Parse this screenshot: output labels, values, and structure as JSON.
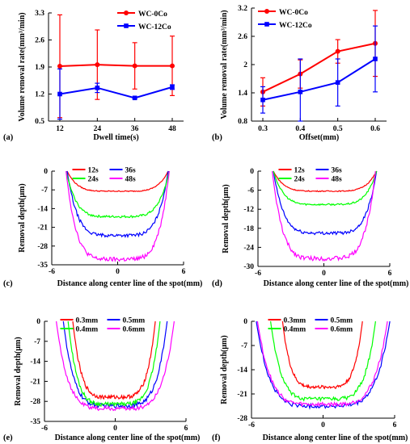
{
  "chart_data": [
    {
      "id": "a",
      "panel_label": "(a)",
      "type": "line",
      "xlabel": "Dwell time(s)",
      "ylabel": "Volume removal rate(mm³/min)",
      "xcats": [
        "12",
        "24",
        "36",
        "48"
      ],
      "yticks": [
        "0.5",
        "1.2",
        "1.9",
        "2.6",
        "3.3"
      ],
      "ylim": [
        0.5,
        3.3
      ],
      "legend_position": "top-right",
      "series": [
        {
          "name": "WC-0Co",
          "color": "#ff0000",
          "marker": "circle",
          "values": [
            1.92,
            1.96,
            1.93,
            1.93
          ],
          "err": [
            1.33,
            0.9,
            0.6,
            0.77
          ]
        },
        {
          "name": "WC-12Co",
          "color": "#0000ff",
          "marker": "square",
          "values": [
            1.2,
            1.36,
            1.1,
            1.38
          ],
          "err": [
            0.65,
            0.12,
            0.02,
            0.06
          ]
        }
      ]
    },
    {
      "id": "b",
      "panel_label": "(b)",
      "type": "line",
      "xlabel": "Offset(mm)",
      "ylabel": "Volume removal rate(mm³/min)",
      "xcats": [
        "0.3",
        "0.4",
        "0.5",
        "0.6"
      ],
      "yticks": [
        "0.8",
        "1.4",
        "2",
        "2.6",
        "3.2"
      ],
      "ylim": [
        0.8,
        3.2
      ],
      "legend_position": "top-left",
      "series": [
        {
          "name": "WC-0Co",
          "color": "#ff0000",
          "marker": "circle",
          "values": [
            1.42,
            1.8,
            2.28,
            2.45
          ],
          "err": [
            0.3,
            0.3,
            0.25,
            0.7
          ]
        },
        {
          "name": "WC-12Co",
          "color": "#0000ff",
          "marker": "square",
          "values": [
            1.25,
            1.42,
            1.62,
            2.12
          ],
          "err": [
            0.28,
            0.7,
            0.5,
            0.7
          ]
        }
      ]
    },
    {
      "id": "c",
      "panel_label": "(c)",
      "type": "line",
      "xlabel": "Distance along center line of the spot(mm)",
      "ylabel": "Removal depth(μm)",
      "xlim": [
        -6,
        6
      ],
      "xticks": [
        "-6",
        "0",
        "6"
      ],
      "ylim": [
        -35,
        0
      ],
      "yticks": [
        "0",
        "-7",
        "-14",
        "-21",
        "-28",
        "-35"
      ],
      "legend_position": "top-center",
      "series": [
        {
          "name": "12s",
          "color": "#ff0000",
          "floor": -7.5,
          "xl": -4.6,
          "xr": 4.6
        },
        {
          "name": "36s",
          "color": "#0000ff",
          "floor": -24.0,
          "xl": -4.6,
          "xr": 4.6
        },
        {
          "name": "24s",
          "color": "#00ff00",
          "floor": -17.0,
          "xl": -4.7,
          "xr": 4.7
        },
        {
          "name": "48s",
          "color": "#ff00ff",
          "floor": -33.0,
          "xl": -4.7,
          "xr": 4.7
        }
      ]
    },
    {
      "id": "d",
      "panel_label": "(d)",
      "type": "line",
      "xlabel": "Distance along center line of the spot(mm)",
      "ylabel": "Removal depth(μm)",
      "xlim": [
        -6,
        6
      ],
      "xticks": [
        "-6",
        "0",
        "6"
      ],
      "ylim": [
        -30,
        0
      ],
      "yticks": [
        "0",
        "-6",
        "-12",
        "-18",
        "-24",
        "-30"
      ],
      "legend_position": "top-center",
      "series": [
        {
          "name": "12s",
          "color": "#ff0000",
          "floor": -6.3,
          "xl": -4.6,
          "xr": 4.8
        },
        {
          "name": "36s",
          "color": "#0000ff",
          "floor": -19.5,
          "xl": -4.6,
          "xr": 4.8
        },
        {
          "name": "24s",
          "color": "#00ff00",
          "floor": -10.5,
          "xl": -4.6,
          "xr": 4.8
        },
        {
          "name": "48s",
          "color": "#ff00ff",
          "floor": -27.5,
          "xl": -4.7,
          "xr": 4.7
        }
      ]
    },
    {
      "id": "e",
      "panel_label": "(e)",
      "type": "line",
      "xlabel": "Distance along center line of the spot(mm)",
      "ylabel": "Removal depth(μm)",
      "xlim": [
        -6,
        6
      ],
      "xticks": [
        "-6",
        "0",
        "6"
      ],
      "ylim": [
        -35,
        0
      ],
      "yticks": [
        "0",
        "-7",
        "-14",
        "-21",
        "-28",
        "-35"
      ],
      "legend_position": "top-center",
      "series": [
        {
          "name": "0.3mm",
          "color": "#ff0000",
          "floor": -26.5,
          "xl": -3.6,
          "xr": 3.4
        },
        {
          "name": "0.5mm",
          "color": "#0000ff",
          "floor": -29.5,
          "xl": -4.4,
          "xr": 4.4
        },
        {
          "name": "0.4mm",
          "color": "#00ff00",
          "floor": -29.0,
          "xl": -4.0,
          "xr": 3.8
        },
        {
          "name": "0.6mm",
          "color": "#ff00ff",
          "floor": -30.5,
          "xl": -5.0,
          "xr": 5.0
        }
      ]
    },
    {
      "id": "f",
      "panel_label": "(f)",
      "type": "line",
      "xlabel": "Distance along center line of the spot(mm)",
      "ylabel": "Removal depth(μm)",
      "xlim": [
        -6,
        6
      ],
      "xticks": [
        "-6",
        "0",
        "6"
      ],
      "ylim": [
        -28,
        0
      ],
      "yticks": [
        "0",
        "-7",
        "-14",
        "-21",
        "-28"
      ],
      "legend_position": "top-center",
      "series": [
        {
          "name": "0.3mm",
          "color": "#ff0000",
          "floor": -19.0,
          "xl": -3.4,
          "xr": 3.3
        },
        {
          "name": "0.5mm",
          "color": "#0000ff",
          "floor": -24.5,
          "xl": -5.6,
          "xr": 5.6
        },
        {
          "name": "0.4mm",
          "color": "#00ff00",
          "floor": -22.5,
          "xl": -4.4,
          "xr": 4.4
        },
        {
          "name": "0.6mm",
          "color": "#ff00ff",
          "floor": -24.0,
          "xl": -5.5,
          "xr": 5.4
        }
      ]
    }
  ]
}
